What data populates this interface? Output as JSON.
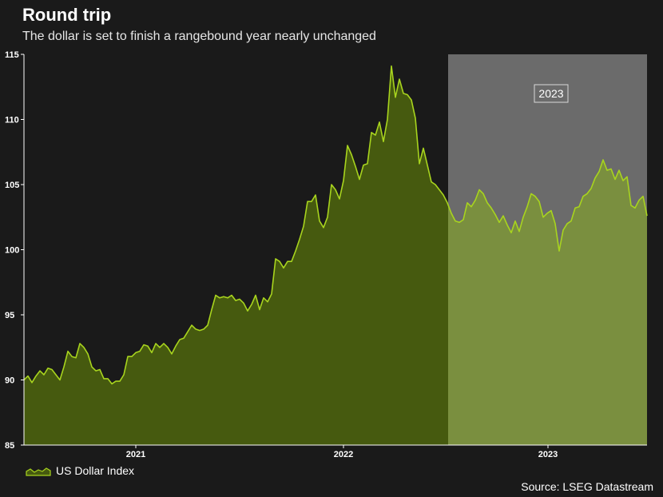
{
  "header": {
    "title": "Round trip",
    "subtitle": "The dollar is set to finish a rangebound year nearly unchanged"
  },
  "footer": {
    "source": "Source: LSEG Datastream"
  },
  "colors": {
    "background": "#1a1a1a",
    "line": "#a8d41e",
    "area_dark": "#465a0f",
    "highlight_band": "#6b6b6b",
    "area_highlight": "#7a8f3f"
  },
  "chart_data": {
    "type": "area",
    "title": "Round trip",
    "subtitle": "The dollar is set to finish a rangebound year nearly unchanged",
    "xlabel": "",
    "ylabel": "",
    "ylim": [
      85,
      115
    ],
    "yticks": [
      85,
      90,
      95,
      100,
      105,
      110,
      115
    ],
    "xticks": [
      "2021",
      "2022",
      "2023"
    ],
    "legend": [
      "US Dollar Index"
    ],
    "legend_position": "bottom-left",
    "grid": false,
    "annotations": [
      {
        "text": "2023",
        "note": "shaded period, July 2022 to December 2023"
      }
    ],
    "series": [
      {
        "name": "US Dollar Index",
        "x_start": "2020-06",
        "x_end": "2023-12",
        "values": [
          90.0,
          90.3,
          89.8,
          90.3,
          90.7,
          90.4,
          90.9,
          90.8,
          90.4,
          90.0,
          91.0,
          92.2,
          91.8,
          91.7,
          92.8,
          92.5,
          92.0,
          91.0,
          90.7,
          90.8,
          90.1,
          90.1,
          89.7,
          89.9,
          89.9,
          90.4,
          91.8,
          91.8,
          92.1,
          92.2,
          92.7,
          92.6,
          92.1,
          92.8,
          92.5,
          92.8,
          92.5,
          92.0,
          92.6,
          93.1,
          93.2,
          93.7,
          94.2,
          93.9,
          93.8,
          93.9,
          94.2,
          95.4,
          96.5,
          96.3,
          96.4,
          96.3,
          96.5,
          96.1,
          96.2,
          95.9,
          95.3,
          95.8,
          96.5,
          95.4,
          96.3,
          96.0,
          96.6,
          99.3,
          99.1,
          98.6,
          99.1,
          99.1,
          99.9,
          100.8,
          101.8,
          103.7,
          103.7,
          104.2,
          102.2,
          101.7,
          102.5,
          105.0,
          104.6,
          103.9,
          105.3,
          108.0,
          107.3,
          106.4,
          105.4,
          106.5,
          106.6,
          109.0,
          108.8,
          109.8,
          108.3,
          110.0,
          114.1,
          111.7,
          113.1,
          112.0,
          111.9,
          111.5,
          110.1,
          106.6,
          107.8,
          106.5,
          105.2,
          105.0,
          104.6,
          104.2,
          103.6,
          102.8,
          102.2,
          102.1,
          102.3,
          103.6,
          103.3,
          103.8,
          104.6,
          104.3,
          103.6,
          103.2,
          102.7,
          102.1,
          102.6,
          101.9,
          101.3,
          102.2,
          101.4,
          102.5,
          103.3,
          104.3,
          104.1,
          103.7,
          102.5,
          102.8,
          103.0,
          102.0,
          99.9,
          101.5,
          102.0,
          102.2,
          103.2,
          103.3,
          104.1,
          104.3,
          104.7,
          105.5,
          106.0,
          106.9,
          106.1,
          106.2,
          105.4,
          106.1,
          105.3,
          105.6,
          103.4,
          103.2,
          103.8,
          104.1,
          102.6
        ]
      }
    ]
  }
}
